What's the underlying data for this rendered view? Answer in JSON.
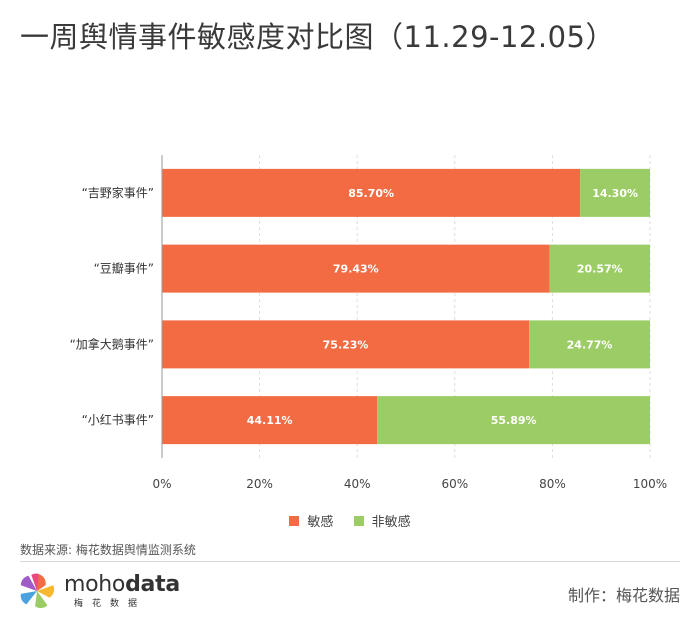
{
  "title": "一周舆情事件敏感度对比图（11.29-12.05）",
  "chart_data": {
    "type": "bar",
    "orientation": "horizontal",
    "stacked": true,
    "percent": true,
    "categories": [
      "“吉野家事件”",
      "“豆瓣事件”",
      "“加拿大鹅事件”",
      "“小红书事件”"
    ],
    "series": [
      {
        "name": "敏感",
        "color": "#f26b43",
        "values": [
          85.7,
          79.43,
          75.23,
          44.11
        ]
      },
      {
        "name": "非敏感",
        "color": "#9ccc65",
        "values": [
          14.3,
          20.57,
          24.77,
          55.89
        ]
      }
    ],
    "data_labels": [
      [
        "85.70%",
        "79.43%",
        "75.23%",
        "44.11%"
      ],
      [
        "14.30%",
        "20.57%",
        "24.77%",
        "55.89%"
      ]
    ],
    "xlim": [
      0,
      100
    ],
    "xticks": [
      "0%",
      "20%",
      "40%",
      "60%",
      "80%",
      "100%"
    ],
    "grid": "vertical-dashed",
    "legend_position": "bottom"
  },
  "legend": [
    {
      "label": "敏感",
      "color": "#f26b43"
    },
    {
      "label": "非敏感",
      "color": "#9ccc65"
    }
  ],
  "source": "数据来源: 梅花数据舆情监测系统",
  "logo": {
    "word_regular": "moho",
    "word_bold": "data",
    "sub": "梅花数据"
  },
  "credit": "制作：梅花数据"
}
